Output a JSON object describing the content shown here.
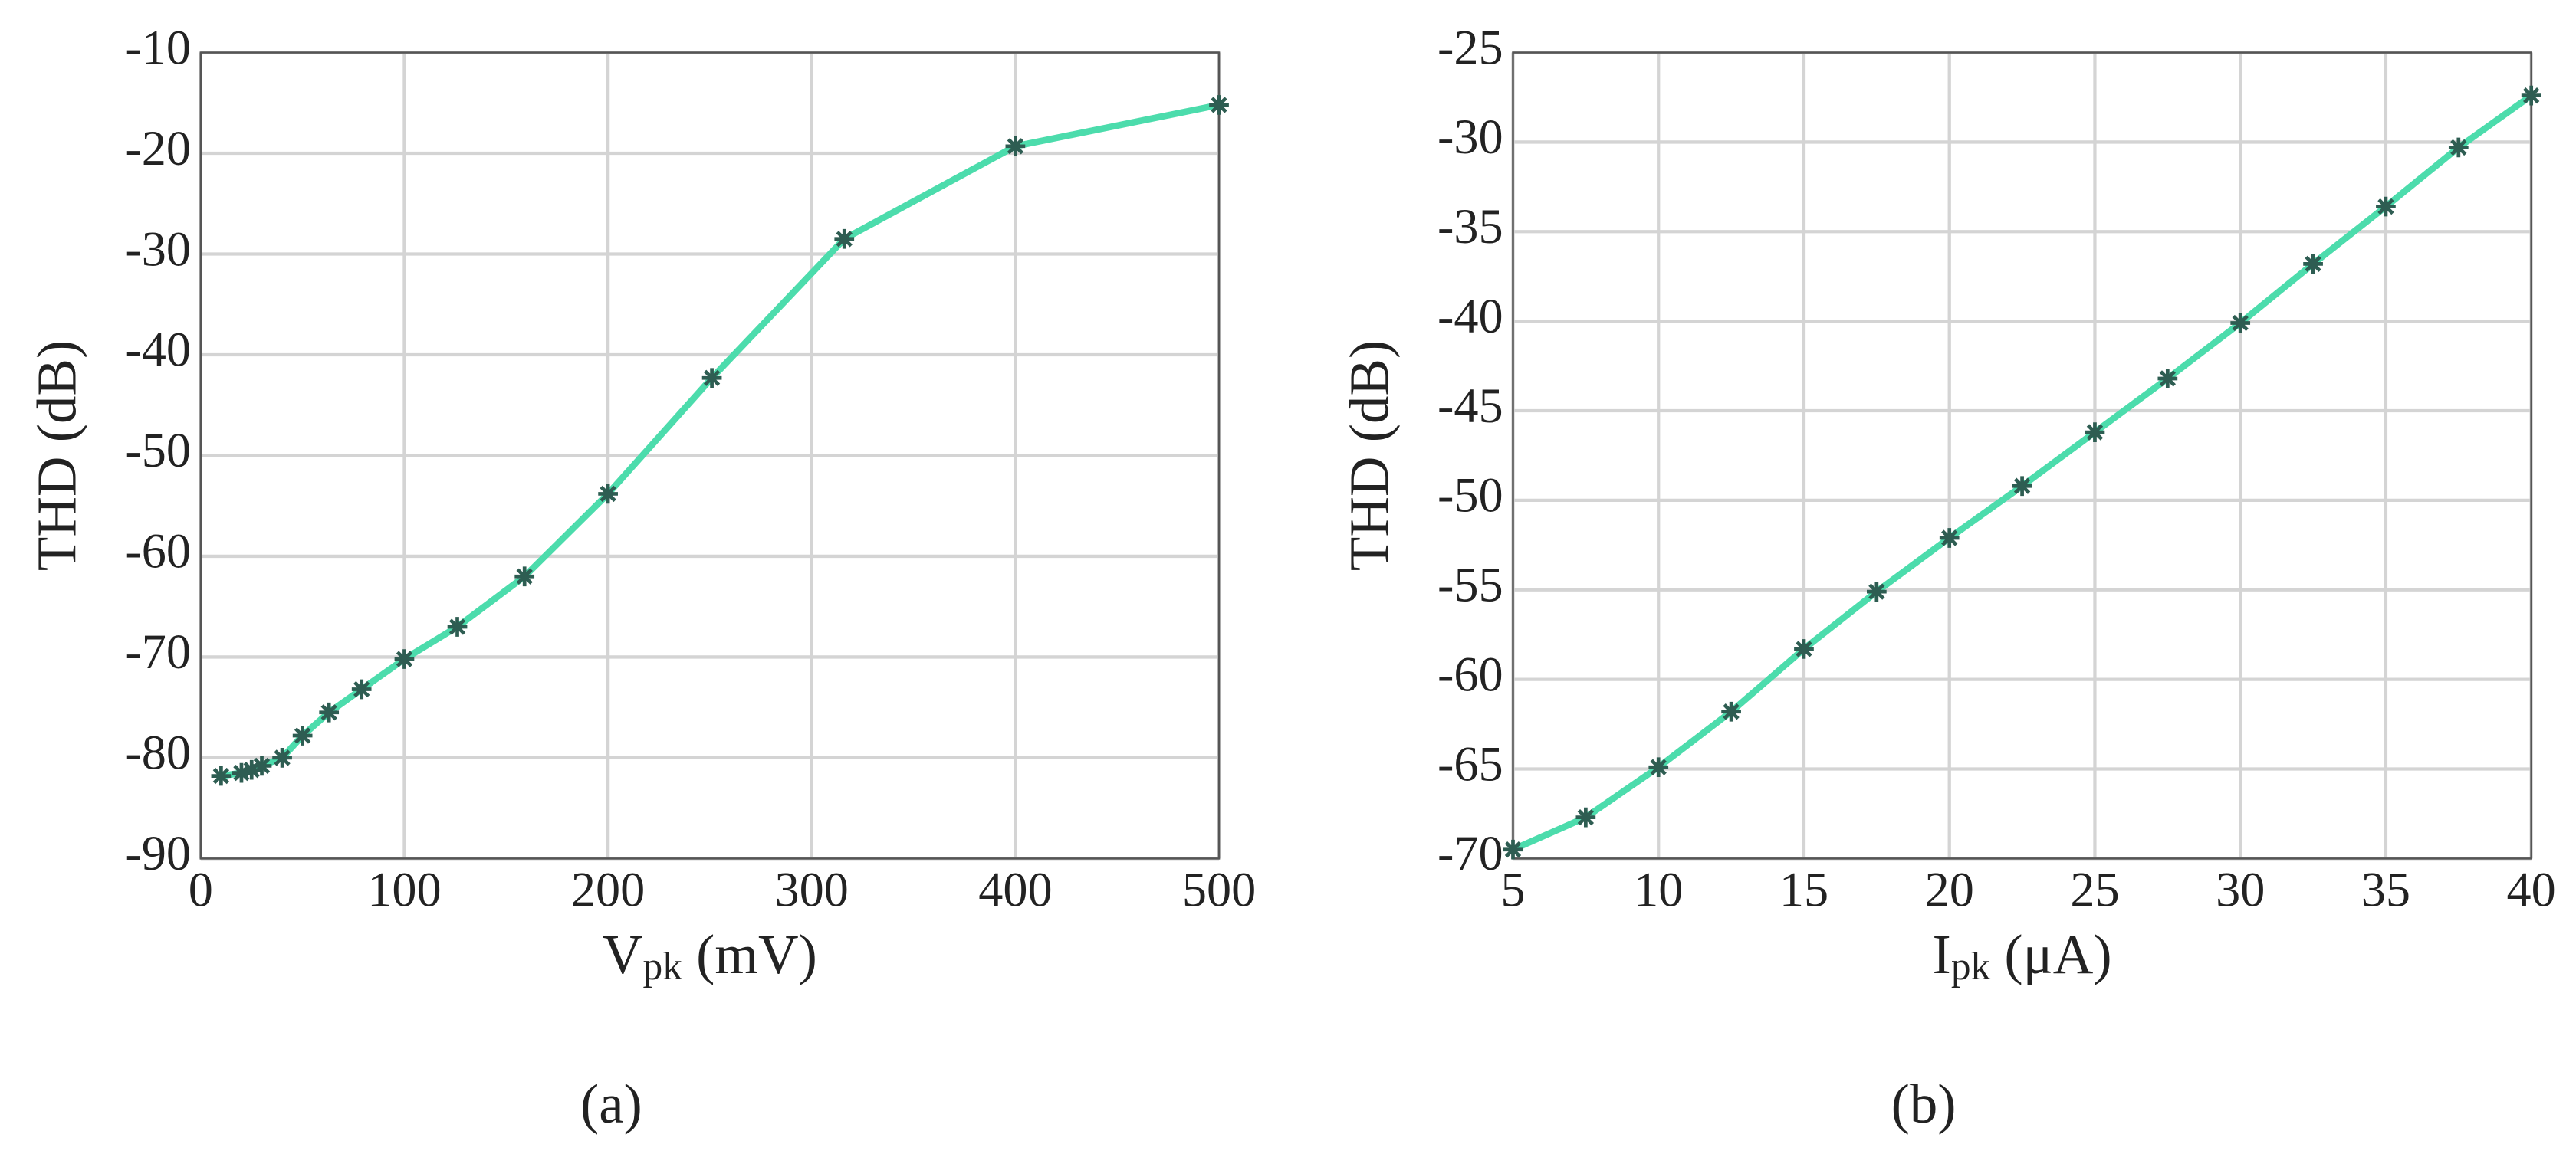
{
  "chart_data": [
    {
      "type": "line",
      "caption": "(a)",
      "x_label": {
        "main": "V",
        "sub": "pk",
        "unit": " (mV)"
      },
      "y_label": "THD (dB)",
      "x": [
        10,
        20,
        25,
        30,
        40,
        50,
        63,
        79,
        100,
        126,
        159,
        200,
        251,
        316,
        400,
        500
      ],
      "values": [
        -81.8,
        -81.5,
        -81.2,
        -80.8,
        -80,
        -77.8,
        -75.5,
        -73.2,
        -70.2,
        -67,
        -62,
        -53.8,
        -42.3,
        -28.5,
        -19.3,
        -15.2
      ],
      "color": "#4cdcac",
      "marker_color": "#2e5d52",
      "xlim": [
        0,
        500
      ],
      "xticks": [
        0,
        100,
        200,
        300,
        400,
        500
      ],
      "ylim": [
        -90,
        -10
      ],
      "yticks": [
        -90,
        -80,
        -70,
        -60,
        -50,
        -40,
        -30,
        -20,
        -10
      ],
      "grid": true
    },
    {
      "type": "line",
      "caption": "(b)",
      "x_label": {
        "main": "I",
        "sub": "pk",
        "unit": " (μA)"
      },
      "y_label": "THD (dB)",
      "x": [
        5,
        7.5,
        10,
        12.5,
        15,
        17.5,
        20,
        22.5,
        25,
        27.5,
        30,
        32.5,
        35,
        37.5,
        40
      ],
      "values": [
        -69.5,
        -67.7,
        -64.9,
        -61.8,
        -58.3,
        -55.1,
        -52.1,
        -49.2,
        -46.2,
        -43.2,
        -40.1,
        -36.8,
        -33.6,
        -30.3,
        -27.4
      ],
      "color": "#4cdcac",
      "marker_color": "#2e5d52",
      "xlim": [
        5,
        40
      ],
      "xticks": [
        5,
        10,
        15,
        20,
        25,
        30,
        35,
        40
      ],
      "ylim": [
        -70,
        -25
      ],
      "yticks": [
        -70,
        -65,
        -60,
        -55,
        -50,
        -45,
        -40,
        -35,
        -30,
        -25
      ],
      "grid": true
    }
  ]
}
